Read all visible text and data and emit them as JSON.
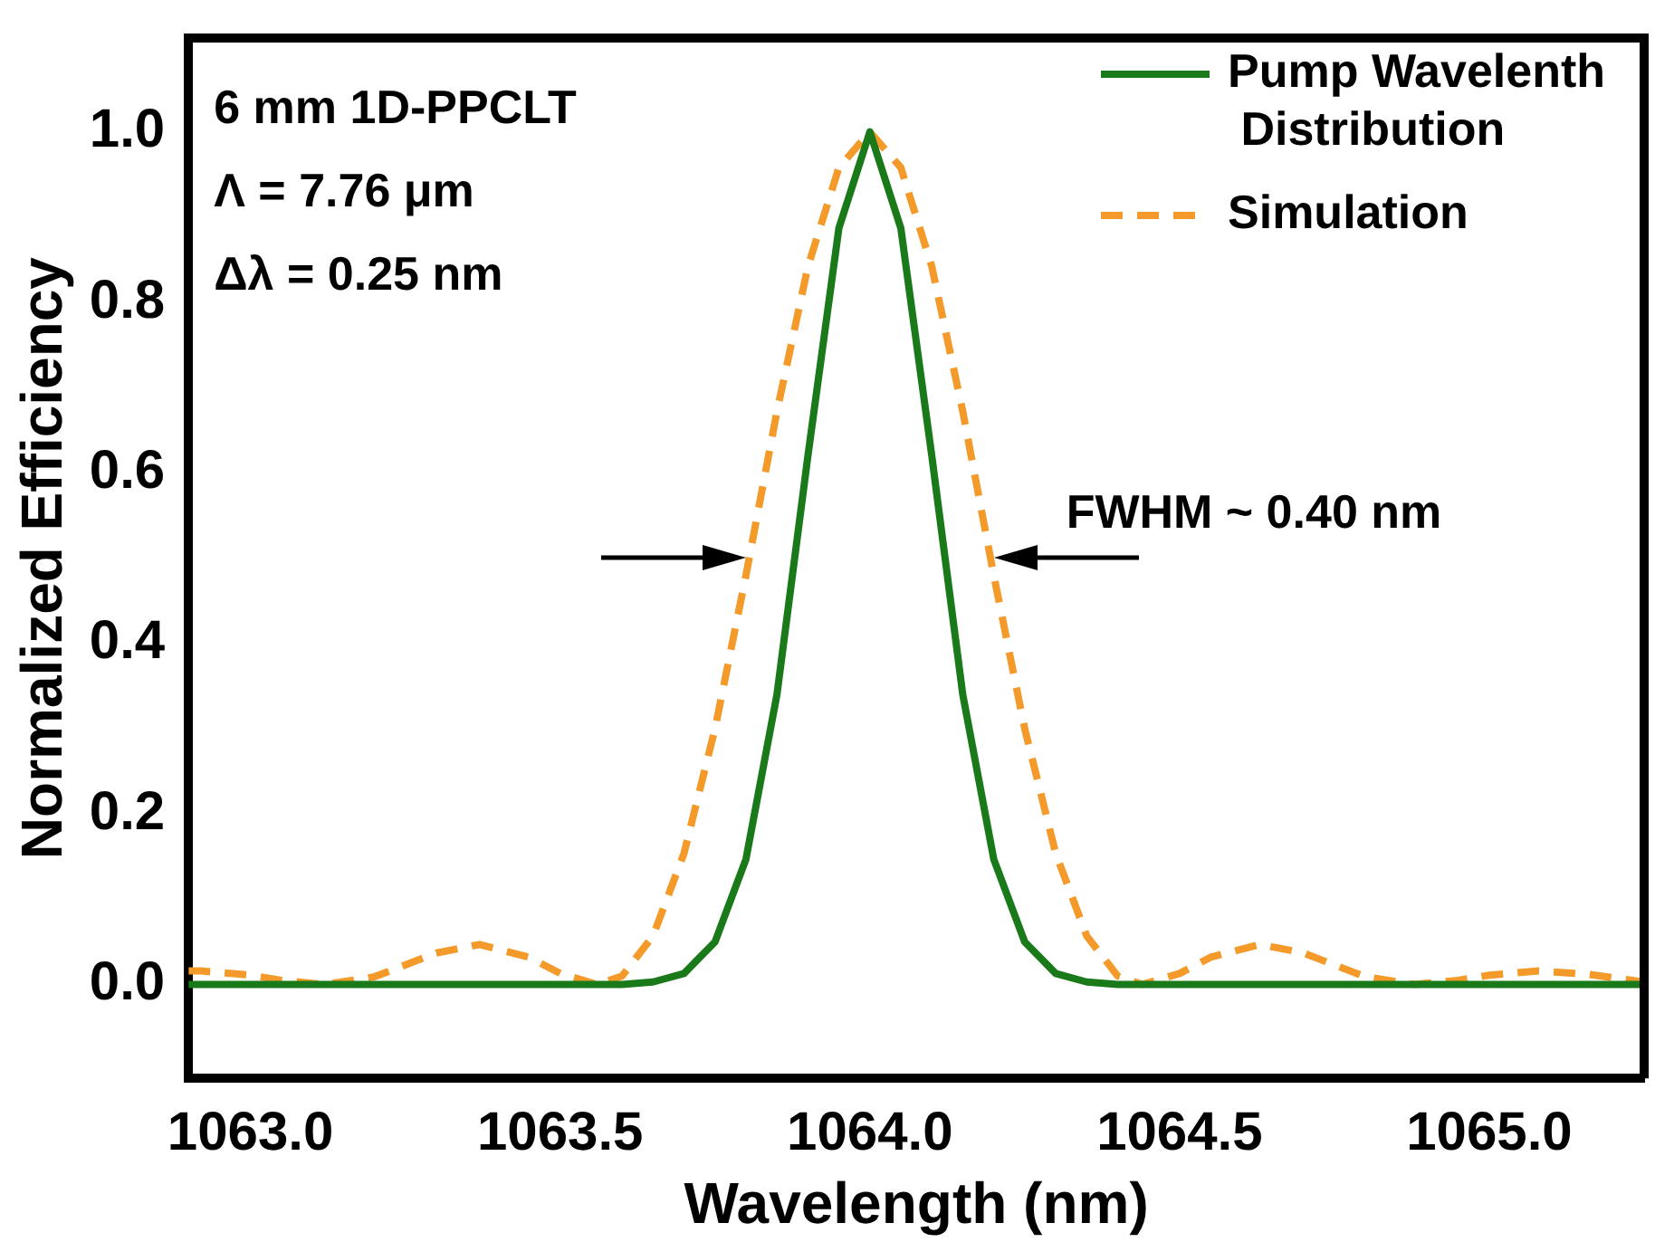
{
  "chart_data": {
    "type": "line",
    "xlabel": "Wavelength (nm)",
    "ylabel": "Normalized Efficiency",
    "xlim": [
      1062.9,
      1065.25
    ],
    "xticks": [
      {
        "value": 1063,
        "label": "1063.0"
      },
      {
        "value": 1063.5,
        "label": "1063.5"
      },
      {
        "value": 1064,
        "label": "1064.0"
      },
      {
        "value": 1064.5,
        "label": "1064.5"
      },
      {
        "value": 1065,
        "label": "1065.0"
      }
    ],
    "ylim": [
      -0.11,
      1.11
    ],
    "yticks": [
      {
        "value": 0,
        "label": "0.0"
      },
      {
        "value": 0.2,
        "label": "0.2"
      },
      {
        "value": 0.4,
        "label": "0.4"
      },
      {
        "value": 0.6,
        "label": "0.6"
      },
      {
        "value": 0.8,
        "label": "0.8"
      },
      {
        "value": 1,
        "label": "1.0"
      }
    ],
    "legend": "top right",
    "grid": false,
    "marker": "none",
    "annotations": [
      "6 mm 1D-PPCLT",
      "Λ = 7.76 μm",
      "Δλ = 0.25 nm",
      {
        "text": "FWHM ~ 0.40 nm",
        "x": 1064.2,
        "y": 0.5
      }
    ],
    "series": [
      {
        "name": "Pump Wavelenth\n Distribution",
        "color": "#1a7a1a",
        "line_style": "solid",
        "x": [
          1062.9,
          1063.3,
          1063.6,
          1063.65,
          1063.7,
          1063.75,
          1063.8,
          1063.85,
          1063.9,
          1063.95,
          1064.0,
          1064.05,
          1064.1,
          1064.15,
          1064.2,
          1064.25,
          1064.3,
          1064.35,
          1064.4,
          1064.7,
          1065.25
        ],
        "values": [
          0,
          0,
          0,
          0.003,
          0.013,
          0.05,
          0.147,
          0.34,
          0.62,
          0.887,
          1,
          0.887,
          0.62,
          0.34,
          0.147,
          0.05,
          0.013,
          0.003,
          0,
          0,
          0
        ]
      },
      {
        "name": "Simulation",
        "color": "#f39a2a",
        "line_style": "dashed",
        "x": [
          1062.9,
          1062.92,
          1063.0,
          1063.05,
          1063.12,
          1063.2,
          1063.3,
          1063.37,
          1063.45,
          1063.5,
          1063.56,
          1063.6,
          1063.65,
          1063.7,
          1063.75,
          1063.8,
          1063.85,
          1063.9,
          1063.95,
          1064.0,
          1064.05,
          1064.1,
          1064.15,
          1064.2,
          1064.25,
          1064.3,
          1064.35,
          1064.4,
          1064.44,
          1064.5,
          1064.55,
          1064.63,
          1064.7,
          1064.8,
          1064.88,
          1064.95,
          1065.0,
          1065.08,
          1065.16,
          1065.25
        ],
        "values": [
          0.016,
          0.016,
          0.011,
          0.005,
          0,
          0.009,
          0.037,
          0.047,
          0.032,
          0.013,
          0,
          0.01,
          0.057,
          0.154,
          0.3,
          0.48,
          0.672,
          0.842,
          0.958,
          1,
          0.958,
          0.842,
          0.672,
          0.48,
          0.3,
          0.154,
          0.057,
          0.01,
          0,
          0.013,
          0.032,
          0.047,
          0.037,
          0.009,
          0,
          0.005,
          0.011,
          0.016,
          0.012,
          0.003
        ]
      }
    ]
  }
}
